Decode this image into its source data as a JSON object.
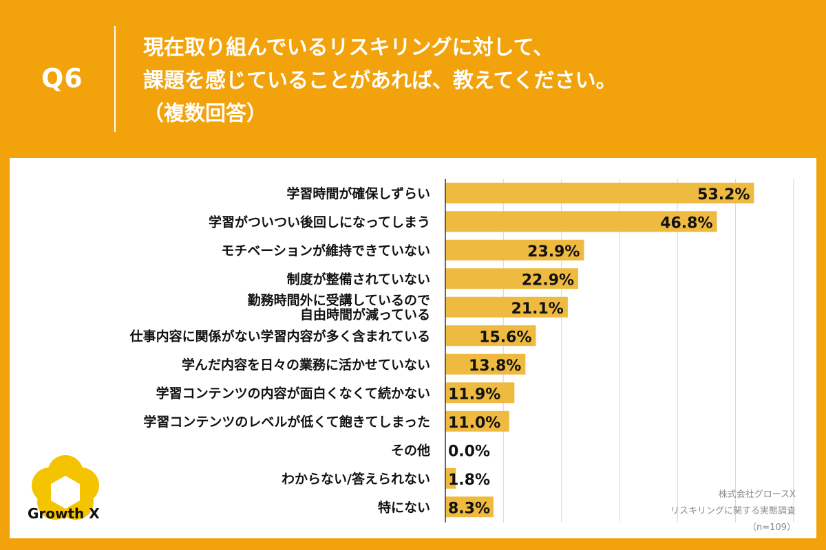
{
  "header": {
    "question_number": "Q6",
    "question_lines": [
      "現在取り組んでいるリスキリングに対して、",
      "課題を感じていることがあれば、教えてください。",
      "（複数回答）"
    ]
  },
  "chart_data": {
    "type": "bar",
    "orientation": "horizontal",
    "categories": [
      "学習時間が確保しずらい",
      "学習がついつい後回しになってしまう",
      "モチベーションが維持できていない",
      "制度が整備されていない",
      "勤務時間外に受講しているので\n自由時間が減っている",
      "仕事内容に関係がない学習内容が多く含まれている",
      "学んだ内容を日々の業務に活かせていない",
      "学習コンテンツの内容が面白くなくて続かない",
      "学習コンテンツのレベルが低くて飽きてしまった",
      "その他",
      "わからない/答えられない",
      "特にない"
    ],
    "values": [
      53.2,
      46.8,
      23.9,
      22.9,
      21.1,
      15.6,
      13.8,
      11.9,
      11.0,
      0.0,
      1.8,
      8.3
    ],
    "value_labels": [
      "53.2%",
      "46.8%",
      "23.9%",
      "22.9%",
      "21.1%",
      "15.6%",
      "13.8%",
      "11.9%",
      "11.0%",
      "0.0%",
      "1.8%",
      "8.3%"
    ],
    "xlim": [
      0,
      60
    ],
    "grid": true,
    "unit": "%"
  },
  "colors": {
    "background": "#F2A30C",
    "bar": "#EEBA40",
    "grid": "#d6d6d6",
    "axis": "#333333",
    "text": "#111111",
    "logo": "#F5C400"
  },
  "logo": {
    "text": "Growth X"
  },
  "source": {
    "lines": [
      "株式会社グロースX",
      "リスキリングに関する実態調査",
      "（n=109）"
    ]
  }
}
